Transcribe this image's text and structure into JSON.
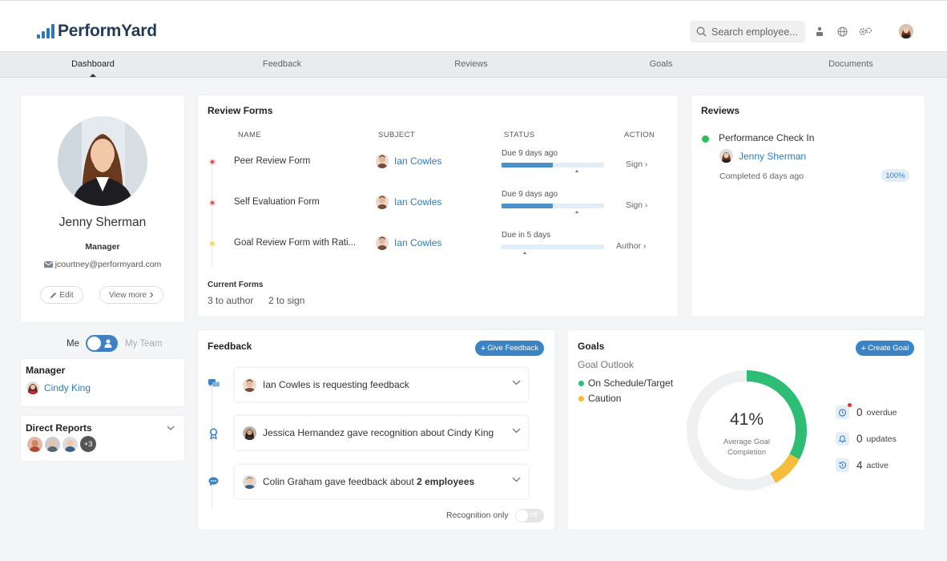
{
  "app": {
    "brand": "PerformYard"
  },
  "header": {
    "search_placeholder": "Search employee..."
  },
  "nav": {
    "tabs": [
      {
        "label": "Dashboard"
      },
      {
        "label": "Feedback"
      },
      {
        "label": "Reviews"
      },
      {
        "label": "Goals"
      },
      {
        "label": "Documents"
      }
    ],
    "active": "Dashboard"
  },
  "profile": {
    "name": "Jenny Sherman",
    "role": "Manager",
    "email": "jcourtney@performyard.com",
    "edit_label": "Edit",
    "view_more_label": "View more"
  },
  "team_toggle": {
    "me_label": "Me",
    "team_label": "My Team"
  },
  "manager": {
    "title": "Manager",
    "name": "Cindy King"
  },
  "direct_reports": {
    "title": "Direct Reports",
    "extra_count": "+3"
  },
  "review_forms": {
    "title": "Review Forms",
    "columns": {
      "name": "NAME",
      "subject": "SUBJECT",
      "status": "STATUS",
      "action": "ACTION"
    },
    "rows": [
      {
        "name": "Peer Review Form",
        "subject": "Ian Cowles",
        "due": "Due 9 days ago",
        "progress": 0.5,
        "action": "Sign",
        "status_color": "#e04b4b"
      },
      {
        "name": "Self Evaluation Form",
        "subject": "Ian Cowles",
        "due": "Due 9 days ago",
        "progress": 0.5,
        "action": "Sign",
        "status_color": "#e04b4b"
      },
      {
        "name": "Goal Review Form with Rati...",
        "subject": "Ian Cowles",
        "due": "Due in 5 days",
        "progress": 0.0,
        "action": "Author",
        "status_color": "#f2d04a"
      }
    ],
    "current_forms": {
      "title": "Current Forms",
      "to_author": "3 to author",
      "to_sign": "2 to sign"
    }
  },
  "reviews": {
    "title": "Reviews",
    "item_title": "Performance Check In",
    "person": "Jenny Sherman",
    "completed": "Completed 6 days ago",
    "percent_label": "100%",
    "status_color": "#2ebd59"
  },
  "feedback": {
    "title": "Feedback",
    "give_label": "Give Feedback",
    "items": [
      {
        "text": "Ian Cowles is requesting feedback",
        "bold": ""
      },
      {
        "text": "Jessica Hernandez gave recognition about Cindy King",
        "bold": ""
      },
      {
        "text": "Colin Graham gave feedback about ",
        "bold": "2 employees"
      }
    ],
    "recognition_label": "Recognition only",
    "switch_state": "off"
  },
  "goals": {
    "title": "Goals",
    "create_label": "Create Goal",
    "outlook_label": "Goal Outlook",
    "legend": [
      {
        "label": "On Schedule/Target",
        "color": "#2ebd74"
      },
      {
        "label": "Caution",
        "color": "#f5bd3c"
      }
    ],
    "percent": "41%",
    "center_label": "Average Goal Completion",
    "donut": {
      "on_schedule": 0.33,
      "caution": 0.09
    },
    "stats": [
      {
        "count": "0",
        "label": "overdue"
      },
      {
        "count": "0",
        "label": "updates"
      },
      {
        "count": "4",
        "label": "active"
      }
    ]
  }
}
